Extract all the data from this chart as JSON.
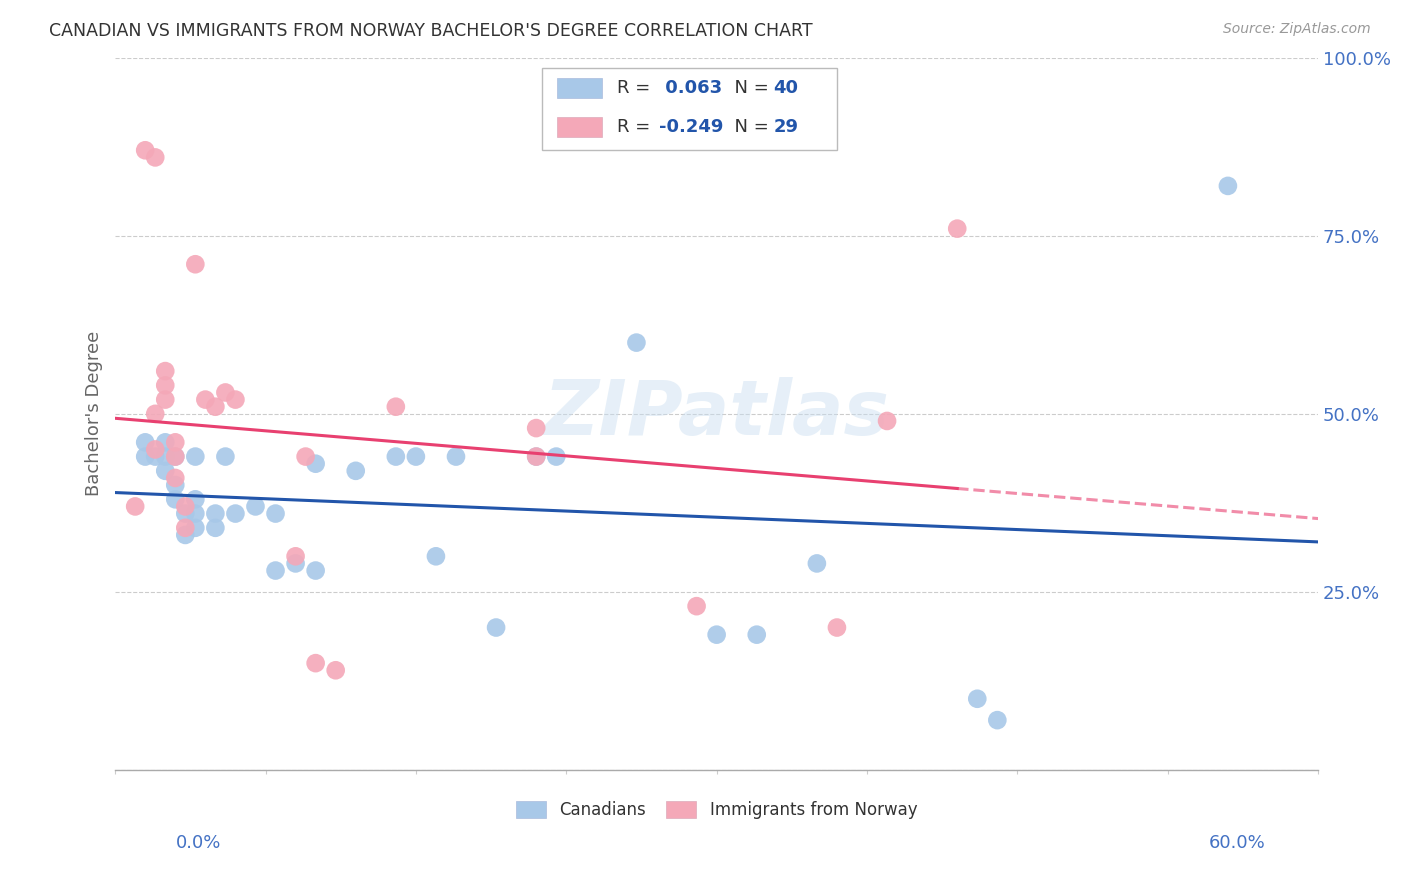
{
  "title": "CANADIAN VS IMMIGRANTS FROM NORWAY BACHELOR'S DEGREE CORRELATION CHART",
  "source": "Source: ZipAtlas.com",
  "ylabel": "Bachelor's Degree",
  "xlim": [
    0.0,
    0.6
  ],
  "ylim": [
    0.0,
    1.0
  ],
  "yticks": [
    0.0,
    0.25,
    0.5,
    0.75,
    1.0
  ],
  "ytick_labels": [
    "",
    "25.0%",
    "50.0%",
    "75.0%",
    "100.0%"
  ],
  "xticks": [
    0.0,
    0.075,
    0.15,
    0.225,
    0.3,
    0.375,
    0.45,
    0.525,
    0.6
  ],
  "r_canadian": 0.063,
  "n_canadian": 40,
  "r_norway": -0.249,
  "n_norway": 29,
  "blue_color": "#a8c8e8",
  "pink_color": "#f4a8b8",
  "blue_line_color": "#2255aa",
  "pink_line_color": "#e84070",
  "title_color": "#333333",
  "axis_label_color": "#4472c4",
  "source_color": "#999999",
  "ylabel_color": "#666666",
  "watermark": "ZIPatlas",
  "grid_color": "#cccccc",
  "canadians_x": [
    0.015,
    0.015,
    0.02,
    0.025,
    0.025,
    0.025,
    0.03,
    0.03,
    0.03,
    0.035,
    0.035,
    0.04,
    0.04,
    0.04,
    0.04,
    0.05,
    0.05,
    0.055,
    0.06,
    0.07,
    0.08,
    0.08,
    0.09,
    0.1,
    0.1,
    0.12,
    0.14,
    0.15,
    0.16,
    0.17,
    0.19,
    0.21,
    0.22,
    0.26,
    0.3,
    0.32,
    0.35,
    0.43,
    0.44,
    0.555
  ],
  "canadians_y": [
    0.44,
    0.46,
    0.44,
    0.42,
    0.44,
    0.46,
    0.38,
    0.4,
    0.44,
    0.33,
    0.36,
    0.34,
    0.36,
    0.38,
    0.44,
    0.34,
    0.36,
    0.44,
    0.36,
    0.37,
    0.28,
    0.36,
    0.29,
    0.28,
    0.43,
    0.42,
    0.44,
    0.44,
    0.3,
    0.44,
    0.2,
    0.44,
    0.44,
    0.6,
    0.19,
    0.19,
    0.29,
    0.1,
    0.07,
    0.82
  ],
  "norway_x": [
    0.01,
    0.015,
    0.02,
    0.02,
    0.02,
    0.025,
    0.025,
    0.025,
    0.03,
    0.03,
    0.03,
    0.035,
    0.035,
    0.04,
    0.045,
    0.05,
    0.055,
    0.06,
    0.09,
    0.095,
    0.1,
    0.11,
    0.14,
    0.21,
    0.21,
    0.29,
    0.36,
    0.385,
    0.42
  ],
  "norway_y": [
    0.37,
    0.87,
    0.86,
    0.45,
    0.5,
    0.52,
    0.54,
    0.56,
    0.41,
    0.44,
    0.46,
    0.34,
    0.37,
    0.71,
    0.52,
    0.51,
    0.53,
    0.52,
    0.3,
    0.44,
    0.15,
    0.14,
    0.51,
    0.44,
    0.48,
    0.23,
    0.2,
    0.49,
    0.76
  ]
}
